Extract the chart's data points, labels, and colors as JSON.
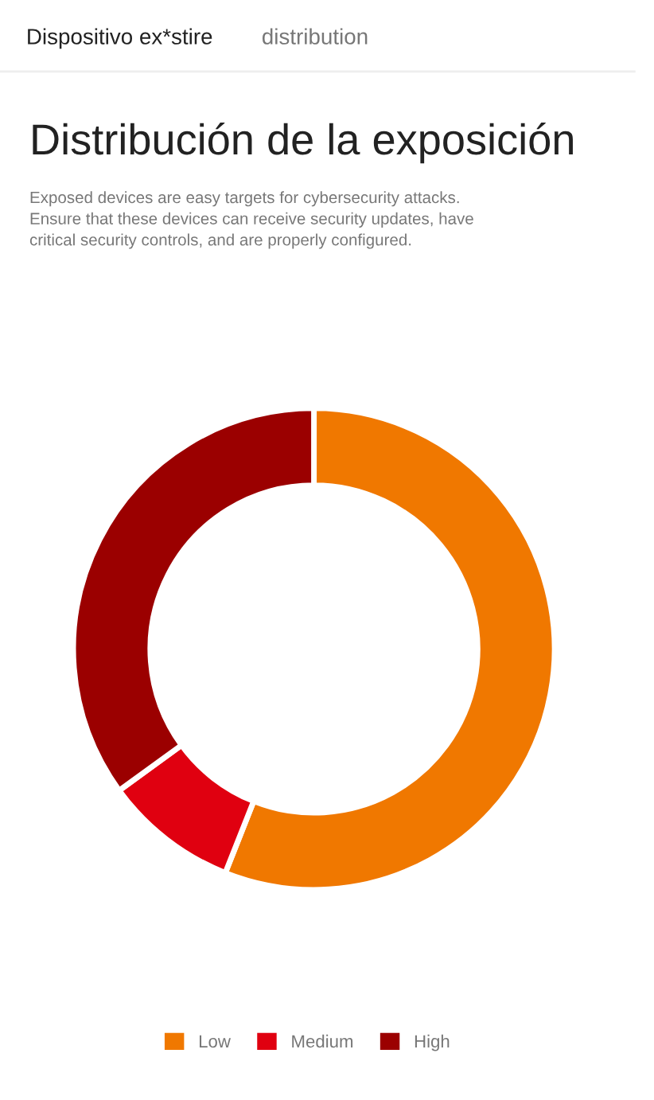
{
  "chart_data": {
    "type": "donut",
    "title": "Distribución de la exposición",
    "subtitle": "Exposed devices are easy targets for cybersecurity attacks.\nEnsure that these devices can receive security updates, have\ncritical security controls, and are properly configured.",
    "annotations": [
      "Dispositivo ex*stire",
      "distribution"
    ],
    "categories": [
      "Low",
      "Medium",
      "High"
    ],
    "values": [
      56,
      9,
      35
    ],
    "colors": [
      "#f07800",
      "#e00010",
      "#9b0000"
    ],
    "legend": "bottom"
  }
}
